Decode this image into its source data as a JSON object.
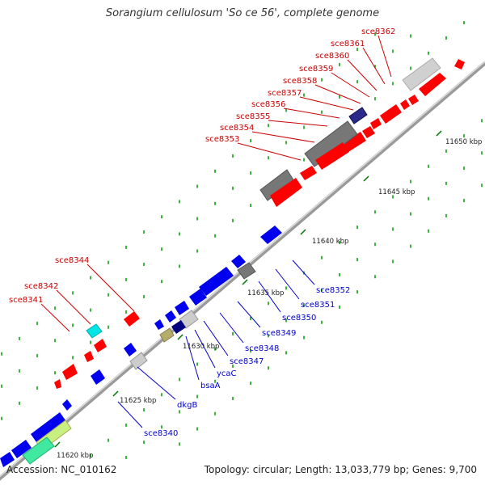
{
  "title": "Sorangium cellulosum 'So ce 56', complete genome",
  "footer": {
    "accession": "Accession: NC_010162",
    "stats": "Topology: circular; Length: 13,033,779 bp; Genes: 9,700"
  },
  "scale_labels": [
    "11620 kbp",
    "11625 kbp",
    "11630 kbp",
    "11635 kbp",
    "11640 kbp",
    "11645 kbp",
    "11650 kbp"
  ],
  "gene_labels_forward": [
    "sce8362",
    "sce8361",
    "sce8360",
    "sce8359",
    "sce8358",
    "sce8357",
    "sce8356",
    "sce8355",
    "sce8354",
    "sce8353",
    "sce8344",
    "sce8342",
    "sce8341"
  ],
  "gene_labels_reverse": [
    "sce8352",
    "sce8351",
    "sce8350",
    "sce8349",
    "sce8348",
    "sce8347",
    "ycaC",
    "bsaA",
    "dkgB",
    "sce8340"
  ],
  "colors": {
    "forward_cds": "#ff0000",
    "reverse_cds": "#0000ee",
    "backbone": "#999999",
    "tick": "#008800",
    "label_forward": "#cc0000",
    "label_reverse": "#0000cc"
  }
}
